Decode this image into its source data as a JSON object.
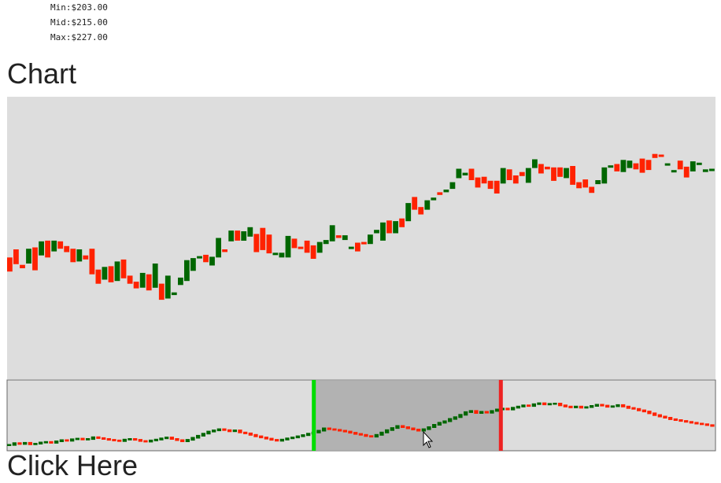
{
  "stats": {
    "min": "Min:$203.00",
    "mid": "Mid:$215.00",
    "max": "Max:$227.00"
  },
  "heading": "Chart",
  "heading2": "Click Here",
  "colors": {
    "up": "#006600",
    "down": "#ff2200",
    "background": "#dddddd",
    "selection": "#aaaaaa",
    "handle_start": "#00dd00",
    "handle_end": "#ee2222"
  },
  "chart_data": {
    "type": "candlestick",
    "title": "",
    "xlabel": "",
    "ylabel": "",
    "grid": false,
    "main_ylim": [
      194,
      236
    ],
    "candles": [
      {
        "o": 212.1,
        "c": 210.0
      },
      {
        "o": 213.3,
        "c": 211.1
      },
      {
        "o": 211.0,
        "c": 210.5
      },
      {
        "o": 211.2,
        "c": 213.4
      },
      {
        "o": 213.6,
        "c": 210.2
      },
      {
        "o": 212.4,
        "c": 214.5
      },
      {
        "o": 214.6,
        "c": 212.1
      },
      {
        "o": 213.0,
        "c": 214.6
      },
      {
        "o": 214.5,
        "c": 213.4
      },
      {
        "o": 213.8,
        "c": 212.9
      },
      {
        "o": 213.4,
        "c": 211.4
      },
      {
        "o": 211.5,
        "c": 213.3
      },
      {
        "o": 212.4,
        "c": 211.8
      },
      {
        "o": 213.4,
        "c": 209.6
      },
      {
        "o": 210.3,
        "c": 208.2
      },
      {
        "o": 208.8,
        "c": 210.7
      },
      {
        "o": 210.8,
        "c": 208.4
      },
      {
        "o": 208.6,
        "c": 211.5
      },
      {
        "o": 211.8,
        "c": 209.0
      },
      {
        "o": 209.4,
        "c": 208.2
      },
      {
        "o": 208.5,
        "c": 207.5
      },
      {
        "o": 207.6,
        "c": 209.8
      },
      {
        "o": 209.6,
        "c": 207.2
      },
      {
        "o": 207.6,
        "c": 211.2
      },
      {
        "o": 208.2,
        "c": 205.8
      },
      {
        "o": 206.0,
        "c": 209.4
      },
      {
        "o": 206.5,
        "c": 206.9
      },
      {
        "o": 208.0,
        "c": 209.1
      },
      {
        "o": 208.6,
        "c": 211.7
      },
      {
        "o": 210.1,
        "c": 212.0
      },
      {
        "o": 212.1,
        "c": 212.3
      },
      {
        "o": 212.5,
        "c": 211.4
      },
      {
        "o": 210.9,
        "c": 212.2
      },
      {
        "o": 212.1,
        "c": 215.0
      },
      {
        "o": 213.3,
        "c": 212.9
      },
      {
        "o": 214.5,
        "c": 216.1
      },
      {
        "o": 216.1,
        "c": 214.6
      },
      {
        "o": 214.6,
        "c": 216.0
      },
      {
        "o": 215.2,
        "c": 216.6
      },
      {
        "o": 215.6,
        "c": 212.9
      },
      {
        "o": 216.5,
        "c": 213.2
      },
      {
        "o": 215.5,
        "c": 212.7
      },
      {
        "o": 212.8,
        "c": 212.8
      },
      {
        "o": 212.1,
        "c": 212.8
      },
      {
        "o": 212.1,
        "c": 215.3
      },
      {
        "o": 214.9,
        "c": 213.5
      },
      {
        "o": 213.7,
        "c": 213.5
      },
      {
        "o": 214.6,
        "c": 212.8
      },
      {
        "o": 213.9,
        "c": 211.9
      },
      {
        "o": 212.8,
        "c": 214.4
      },
      {
        "o": 214.1,
        "c": 214.7
      },
      {
        "o": 214.5,
        "c": 216.9
      },
      {
        "o": 215.4,
        "c": 215.0
      },
      {
        "o": 214.7,
        "c": 215.4
      },
      {
        "o": 213.4,
        "c": 213.7
      },
      {
        "o": 214.3,
        "c": 213.0
      },
      {
        "o": 214.4,
        "c": 214.3
      },
      {
        "o": 214.1,
        "c": 215.5
      },
      {
        "o": 215.7,
        "c": 216.2
      },
      {
        "o": 214.6,
        "c": 217.3
      },
      {
        "o": 217.6,
        "c": 215.7
      },
      {
        "o": 215.7,
        "c": 217.5
      },
      {
        "o": 217.9,
        "c": 216.6
      },
      {
        "o": 217.5,
        "c": 220.2
      },
      {
        "o": 221.1,
        "c": 219.2
      },
      {
        "o": 219.6,
        "c": 218.5
      },
      {
        "o": 219.2,
        "c": 220.6
      },
      {
        "o": 220.6,
        "c": 221.0
      },
      {
        "o": 221.8,
        "c": 221.4
      },
      {
        "o": 221.8,
        "c": 222.2
      },
      {
        "o": 222.3,
        "c": 223.3
      },
      {
        "o": 223.9,
        "c": 225.3
      },
      {
        "o": 224.3,
        "c": 224.7
      },
      {
        "o": 225.3,
        "c": 223.6
      },
      {
        "o": 224.0,
        "c": 222.5
      },
      {
        "o": 224.1,
        "c": 223.1
      },
      {
        "o": 223.5,
        "c": 222.3
      },
      {
        "o": 223.5,
        "c": 221.6
      },
      {
        "o": 223.1,
        "c": 225.4
      },
      {
        "o": 225.2,
        "c": 223.6
      },
      {
        "o": 224.3,
        "c": 223.1
      },
      {
        "o": 224.8,
        "c": 224.2
      },
      {
        "o": 223.2,
        "c": 225.4
      },
      {
        "o": 225.4,
        "c": 226.7
      },
      {
        "o": 226.0,
        "c": 224.6
      },
      {
        "o": 225.6,
        "c": 225.2
      },
      {
        "o": 225.5,
        "c": 223.5
      },
      {
        "o": 225.5,
        "c": 224.1
      },
      {
        "o": 223.9,
        "c": 225.4
      },
      {
        "o": 225.7,
        "c": 222.9
      },
      {
        "o": 223.3,
        "c": 222.4
      },
      {
        "o": 223.7,
        "c": 222.5
      },
      {
        "o": 222.6,
        "c": 221.7
      },
      {
        "o": 223.0,
        "c": 223.6
      },
      {
        "o": 223.1,
        "c": 225.5
      },
      {
        "o": 225.5,
        "c": 225.8
      },
      {
        "o": 226.0,
        "c": 224.9
      },
      {
        "o": 224.8,
        "c": 226.6
      },
      {
        "o": 225.4,
        "c": 226.5
      },
      {
        "o": 226.1,
        "c": 225.2
      },
      {
        "o": 226.8,
        "c": 224.7
      },
      {
        "o": 226.6,
        "c": 225.1
      },
      {
        "o": 227.5,
        "c": 226.9
      },
      {
        "o": 227.4,
        "c": 227.2
      },
      {
        "o": 225.9,
        "c": 226.1
      },
      {
        "o": 225.0,
        "c": 225.1
      },
      {
        "o": 226.5,
        "c": 225.2
      },
      {
        "o": 225.6,
        "c": 224.0
      },
      {
        "o": 224.9,
        "c": 226.4
      },
      {
        "o": 226.1,
        "c": 226.2
      },
      {
        "o": 224.8,
        "c": 225.2
      },
      {
        "o": 225.3,
        "c": 225.3
      }
    ],
    "navigator": {
      "values": [
        203.0,
        203.6,
        203.3,
        203.7,
        203.2,
        203.4,
        203.8,
        204.0,
        203.7,
        204.2,
        204.6,
        204.4,
        204.9,
        205.1,
        204.8,
        205.0,
        205.6,
        205.3,
        205.0,
        204.7,
        204.5,
        204.3,
        204.8,
        205.0,
        204.7,
        204.3,
        204.1,
        204.5,
        204.8,
        205.2,
        205.5,
        205.0,
        204.6,
        204.2,
        204.7,
        205.4,
        206.1,
        206.8,
        207.5,
        207.9,
        208.3,
        208.0,
        207.6,
        207.9,
        207.2,
        206.9,
        206.4,
        205.9,
        205.5,
        205.1,
        204.7,
        204.4,
        204.8,
        205.2,
        205.5,
        205.9,
        206.3,
        206.8,
        207.2,
        207.8,
        208.6,
        208.3,
        208.1,
        207.8,
        207.5,
        207.1,
        206.7,
        206.4,
        206.0,
        205.8,
        206.4,
        207.2,
        208.0,
        208.7,
        209.4,
        209.0,
        208.6,
        208.2,
        207.8,
        208.3,
        209.0,
        209.8,
        210.5,
        211.0,
        211.8,
        212.4,
        213.2,
        214.1,
        214.5,
        213.8,
        214.2,
        213.9,
        214.5,
        215.0,
        215.3,
        215.0,
        215.6,
        216.0,
        216.4,
        216.2,
        216.8,
        217.1,
        216.7,
        216.9,
        217.0,
        216.4,
        216.0,
        215.7,
        216.0,
        215.6,
        215.8,
        216.2,
        216.6,
        216.3,
        215.9,
        216.1,
        216.5,
        216.0,
        215.5,
        215.2,
        214.7,
        214.3,
        213.7,
        213.1,
        212.6,
        212.2,
        211.7,
        211.4,
        211.1,
        210.8,
        210.5,
        210.2,
        210.0,
        209.7,
        209.4
      ],
      "ylim": [
        201,
        225
      ],
      "selection_fraction": [
        0.433,
        0.697
      ]
    }
  }
}
